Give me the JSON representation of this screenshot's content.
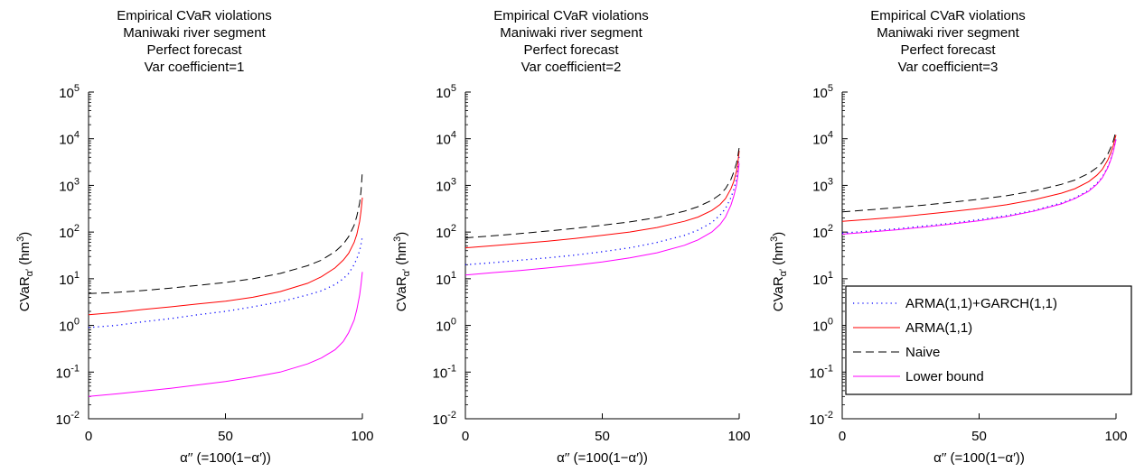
{
  "chart_data": [
    {
      "type": "line",
      "title": [
        "Empirical CVaR violations",
        "Maniwaki river segment",
        "Perfect forecast",
        "Var coefficient=1"
      ],
      "xlabel": "α′′ (=100(1−α′))",
      "ylabel": "CVaR_α′ (hm³)",
      "xlim": [
        0,
        100
      ],
      "ylim": [
        0.01,
        100000
      ],
      "yscale": "log",
      "xticks": [
        "0",
        "50",
        "100"
      ],
      "yticks": [
        {
          "base": "10",
          "exp": "-2"
        },
        {
          "base": "10",
          "exp": "-1"
        },
        {
          "base": "10",
          "exp": "0"
        },
        {
          "base": "10",
          "exp": "1"
        },
        {
          "base": "10",
          "exp": "2"
        },
        {
          "base": "10",
          "exp": "3"
        },
        {
          "base": "10",
          "exp": "4"
        },
        {
          "base": "10",
          "exp": "5"
        }
      ],
      "series": [
        {
          "name": "ARMA(1,1)+GARCH(1,1)",
          "color": "#0000ff",
          "style": "dotted",
          "x": [
            0,
            10,
            20,
            30,
            40,
            50,
            60,
            70,
            80,
            85,
            90,
            93,
            95,
            97,
            98,
            99,
            99.5,
            100
          ],
          "y": [
            0.9,
            1.0,
            1.2,
            1.4,
            1.7,
            2.0,
            2.5,
            3.2,
            4.5,
            5.5,
            7.5,
            10,
            13,
            20,
            27,
            40,
            55,
            80
          ]
        },
        {
          "name": "ARMA(1,1)",
          "color": "#ff0000",
          "style": "solid",
          "x": [
            0,
            10,
            20,
            30,
            40,
            50,
            60,
            70,
            80,
            85,
            90,
            93,
            95,
            97,
            98,
            99,
            99.5,
            100
          ],
          "y": [
            1.7,
            1.9,
            2.2,
            2.5,
            2.9,
            3.3,
            4.0,
            5.3,
            8,
            11,
            17,
            25,
            35,
            60,
            90,
            170,
            280,
            550
          ]
        },
        {
          "name": "Naive",
          "color": "#000000",
          "style": "dashed",
          "x": [
            0,
            10,
            20,
            30,
            40,
            50,
            60,
            70,
            80,
            85,
            90,
            93,
            95,
            97,
            98,
            99,
            99.5,
            100
          ],
          "y": [
            4.8,
            5.1,
            5.6,
            6.3,
            7.2,
            8.3,
            10,
            13,
            19,
            25,
            38,
            55,
            80,
            140,
            220,
            420,
            750,
            2000
          ]
        },
        {
          "name": "Lower bound",
          "color": "#ff00ff",
          "style": "solid",
          "x": [
            0,
            10,
            20,
            30,
            40,
            50,
            60,
            70,
            80,
            85,
            90,
            93,
            95,
            97,
            98,
            99,
            99.5,
            100
          ],
          "y": [
            0.03,
            0.034,
            0.039,
            0.045,
            0.053,
            0.063,
            0.078,
            0.1,
            0.15,
            0.2,
            0.3,
            0.45,
            0.7,
            1.3,
            2.2,
            4.5,
            7.5,
            14
          ]
        }
      ]
    },
    {
      "type": "line",
      "title": [
        "Empirical CVaR violations",
        "Maniwaki river segment",
        "Perfect forecast",
        "Var coefficient=2"
      ],
      "xlabel": "α′′ (=100(1−α′))",
      "ylabel": "CVaR_α′ (hm³)",
      "xlim": [
        0,
        100
      ],
      "ylim": [
        0.01,
        100000
      ],
      "yscale": "log",
      "xticks": [
        "0",
        "50",
        "100"
      ],
      "yticks": [
        {
          "base": "10",
          "exp": "-2"
        },
        {
          "base": "10",
          "exp": "-1"
        },
        {
          "base": "10",
          "exp": "0"
        },
        {
          "base": "10",
          "exp": "1"
        },
        {
          "base": "10",
          "exp": "2"
        },
        {
          "base": "10",
          "exp": "3"
        },
        {
          "base": "10",
          "exp": "4"
        },
        {
          "base": "10",
          "exp": "5"
        }
      ],
      "series": [
        {
          "name": "ARMA(1,1)+GARCH(1,1)",
          "color": "#0000ff",
          "style": "dotted",
          "x": [
            0,
            10,
            20,
            30,
            40,
            50,
            60,
            70,
            80,
            85,
            90,
            93,
            95,
            97,
            98,
            99,
            99.5,
            100
          ],
          "y": [
            20,
            22,
            25,
            28,
            32,
            38,
            46,
            60,
            85,
            110,
            160,
            230,
            320,
            550,
            800,
            1400,
            2200,
            4500
          ]
        },
        {
          "name": "ARMA(1,1)",
          "color": "#ff0000",
          "style": "solid",
          "x": [
            0,
            10,
            20,
            30,
            40,
            50,
            60,
            70,
            80,
            85,
            90,
            93,
            95,
            97,
            98,
            99,
            99.5,
            100
          ],
          "y": [
            46,
            51,
            57,
            64,
            73,
            85,
            100,
            125,
            170,
            210,
            290,
            390,
            520,
            850,
            1200,
            2000,
            3000,
            5500
          ]
        },
        {
          "name": "Naive",
          "color": "#000000",
          "style": "dashed",
          "x": [
            0,
            10,
            20,
            30,
            40,
            50,
            60,
            70,
            80,
            85,
            90,
            93,
            95,
            97,
            98,
            99,
            99.5,
            100
          ],
          "y": [
            75,
            83,
            93,
            105,
            120,
            140,
            165,
            205,
            280,
            350,
            480,
            640,
            850,
            1350,
            1900,
            3000,
            4200,
            6500
          ]
        },
        {
          "name": "Lower bound",
          "color": "#ff00ff",
          "style": "solid",
          "x": [
            0,
            10,
            20,
            30,
            40,
            50,
            60,
            70,
            80,
            85,
            90,
            93,
            95,
            97,
            98,
            99,
            99.5,
            100
          ],
          "y": [
            12,
            13.5,
            15,
            17,
            19.5,
            23,
            28,
            36,
            52,
            68,
            100,
            145,
            210,
            380,
            580,
            1000,
            1600,
            3000
          ]
        }
      ]
    },
    {
      "type": "line",
      "title": [
        "Empirical CVaR violations",
        "Maniwaki river segment",
        "Perfect forecast",
        "Var coefficient=3"
      ],
      "xlabel": "α′′ (=100(1−α′))",
      "ylabel": "CVaR_α′ (hm³)",
      "xlim": [
        0,
        100
      ],
      "ylim": [
        0.01,
        100000
      ],
      "yscale": "log",
      "xticks": [
        "0",
        "50",
        "100"
      ],
      "yticks": [
        {
          "base": "10",
          "exp": "-2"
        },
        {
          "base": "10",
          "exp": "-1"
        },
        {
          "base": "10",
          "exp": "0"
        },
        {
          "base": "10",
          "exp": "1"
        },
        {
          "base": "10",
          "exp": "2"
        },
        {
          "base": "10",
          "exp": "3"
        },
        {
          "base": "10",
          "exp": "4"
        },
        {
          "base": "10",
          "exp": "5"
        }
      ],
      "legend": {
        "position": "lower-right",
        "entries": [
          "ARMA(1,1)+GARCH(1,1)",
          "ARMA(1,1)",
          "Naive",
          "Lower bound"
        ]
      },
      "series": [
        {
          "name": "ARMA(1,1)+GARCH(1,1)",
          "color": "#0000ff",
          "style": "dotted",
          "x": [
            0,
            10,
            20,
            30,
            40,
            50,
            60,
            70,
            80,
            85,
            90,
            93,
            95,
            97,
            98,
            99,
            99.5,
            100
          ],
          "y": [
            95,
            105,
            118,
            135,
            155,
            185,
            225,
            290,
            420,
            540,
            780,
            1100,
            1500,
            2500,
            3500,
            5500,
            7500,
            10000
          ]
        },
        {
          "name": "ARMA(1,1)",
          "color": "#ff0000",
          "style": "solid",
          "x": [
            0,
            10,
            20,
            30,
            40,
            50,
            60,
            70,
            80,
            85,
            90,
            93,
            95,
            97,
            98,
            99,
            99.5,
            100
          ],
          "y": [
            170,
            188,
            210,
            240,
            275,
            320,
            385,
            490,
            680,
            850,
            1200,
            1650,
            2200,
            3500,
            4800,
            7200,
            9500,
            12000
          ]
        },
        {
          "name": "Naive",
          "color": "#000000",
          "style": "dashed",
          "x": [
            0,
            10,
            20,
            30,
            40,
            50,
            60,
            70,
            80,
            85,
            90,
            93,
            95,
            97,
            98,
            99,
            99.5,
            100
          ],
          "y": [
            270,
            300,
            335,
            380,
            435,
            505,
            600,
            760,
            1050,
            1300,
            1800,
            2400,
            3100,
            4700,
            6300,
            9000,
            11500,
            15000
          ]
        },
        {
          "name": "Lower bound",
          "color": "#ff00ff",
          "style": "solid",
          "x": [
            0,
            10,
            20,
            30,
            40,
            50,
            60,
            70,
            80,
            85,
            90,
            93,
            95,
            97,
            98,
            99,
            99.5,
            100
          ],
          "y": [
            90,
            100,
            112,
            128,
            148,
            175,
            215,
            280,
            400,
            520,
            750,
            1050,
            1450,
            2400,
            3400,
            5300,
            7200,
            9500
          ]
        }
      ]
    }
  ]
}
